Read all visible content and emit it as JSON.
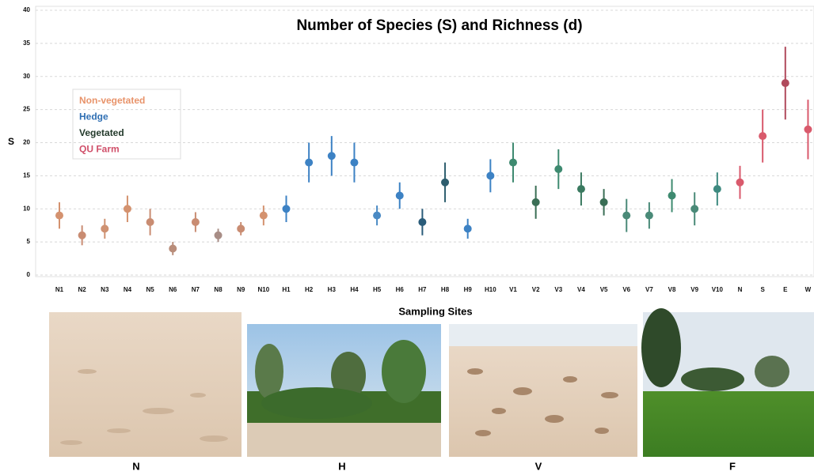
{
  "chart_data": {
    "type": "errorbar",
    "title": "Number of Species (S) and Richness (d)",
    "y_label": "S",
    "x_label": "Sampling Sites",
    "categories": [
      "N1",
      "N2",
      "N3",
      "N4",
      "N5",
      "N6",
      "N7",
      "N8",
      "N9",
      "N10",
      "H1",
      "H2",
      "H3",
      "H4",
      "H5",
      "H6",
      "H7",
      "H8",
      "H9",
      "H10",
      "V1",
      "V2",
      "V3",
      "V4",
      "V5",
      "V6",
      "V7",
      "V8",
      "V9",
      "V10",
      "N",
      "S",
      "E",
      "W"
    ],
    "values": [
      9,
      6,
      7,
      10,
      8,
      4,
      8,
      6,
      7,
      9,
      10,
      17,
      18,
      17,
      9,
      12,
      8,
      14,
      7,
      15,
      17,
      11,
      16,
      13,
      11,
      9,
      9,
      12,
      10,
      13,
      14,
      21,
      29,
      22
    ],
    "errors": [
      2,
      1.5,
      1.5,
      2,
      2,
      1,
      1.5,
      1,
      1,
      1.5,
      2,
      3,
      3,
      3,
      1.5,
      2,
      2,
      3,
      1.5,
      2.5,
      3,
      2.5,
      3,
      2.5,
      2,
      2.5,
      2,
      2.5,
      2.5,
      2.5,
      2.5,
      4,
      5.5,
      4.5
    ],
    "colors": [
      "#d4926f",
      "#c98c72",
      "#cf9272",
      "#d4926f",
      "#c98c72",
      "#b98d7a",
      "#c98c72",
      "#a88d86",
      "#c98c72",
      "#d4926f",
      "#3d82c4",
      "#3d82c4",
      "#3d82c4",
      "#3d82c4",
      "#4a8ac4",
      "#3d82c4",
      "#2a5c7a",
      "#2e5e6e",
      "#3d82c4",
      "#3d82c4",
      "#3e8a70",
      "#3a6e55",
      "#3e8a70",
      "#3a7a60",
      "#3a6e55",
      "#4a8a78",
      "#4a8a78",
      "#3e8a70",
      "#4a8a78",
      "#3e8a80",
      "#d95a6c",
      "#d95a6c",
      "#b04a5c",
      "#d95a6c"
    ],
    "legend": [
      {
        "name": "Non-vegetated",
        "color": "#e8936a"
      },
      {
        "name": "Hedge",
        "color": "#2f6fb3"
      },
      {
        "name": "Vegetated",
        "color": "#243b2c"
      },
      {
        "name": "QU Farm",
        "color": "#d0506a"
      }
    ],
    "ylim": [
      0,
      40
    ],
    "yticks": [
      0,
      5,
      10,
      15,
      20,
      25,
      30,
      35,
      40
    ],
    "grid": true
  },
  "photos": [
    {
      "label": "N"
    },
    {
      "label": "H"
    },
    {
      "label": "V"
    },
    {
      "label": "F"
    }
  ]
}
